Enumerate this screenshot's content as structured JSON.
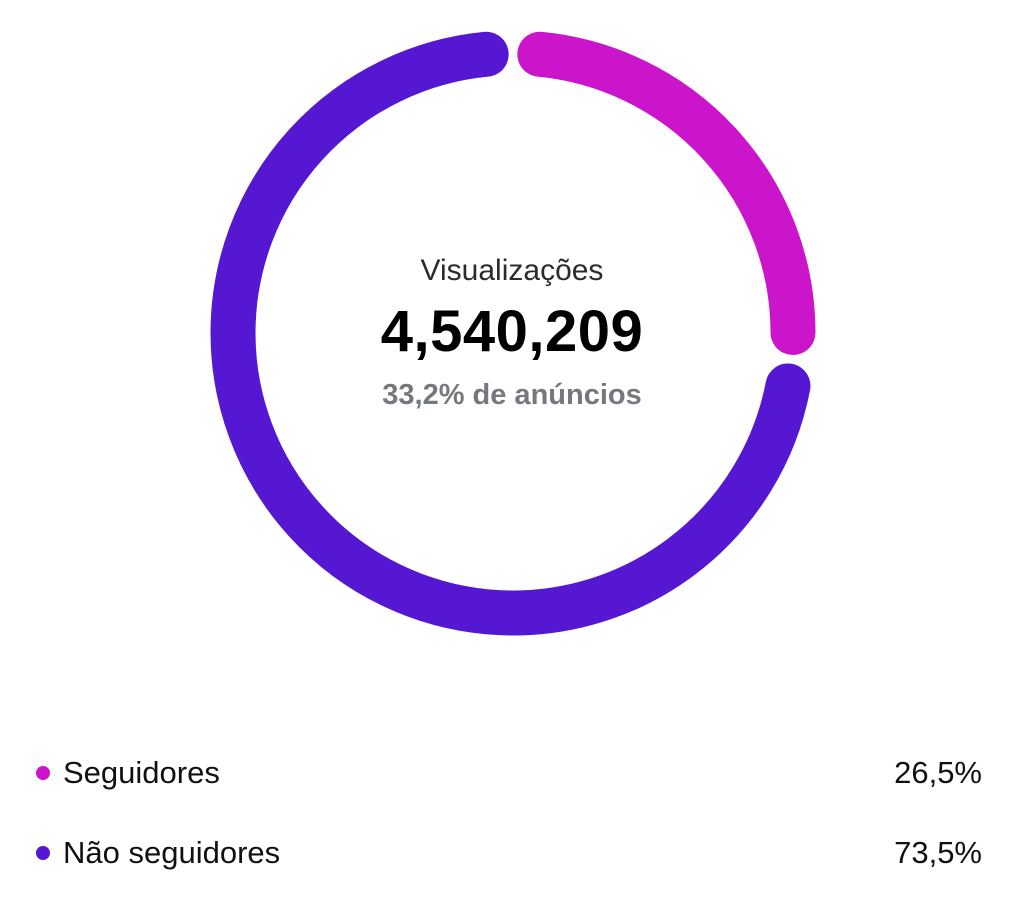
{
  "chart_data": {
    "type": "pie",
    "donut": true,
    "title": "Visualizações",
    "center": {
      "label": "Visualizações",
      "value": "4,540,209",
      "subtitle": "33,2% de anúncios"
    },
    "series": [
      {
        "name": "Seguidores",
        "percent": 26.5,
        "display": "26,5%",
        "color": "#cb15cb"
      },
      {
        "name": "Não seguidores",
        "percent": 73.5,
        "display": "73,5%",
        "color": "#5517d2"
      }
    ],
    "legend_position": "bottom",
    "start_angle_deg": -90,
    "segment_end_inset_deg": 5.5,
    "background_color": "#ffffff"
  }
}
